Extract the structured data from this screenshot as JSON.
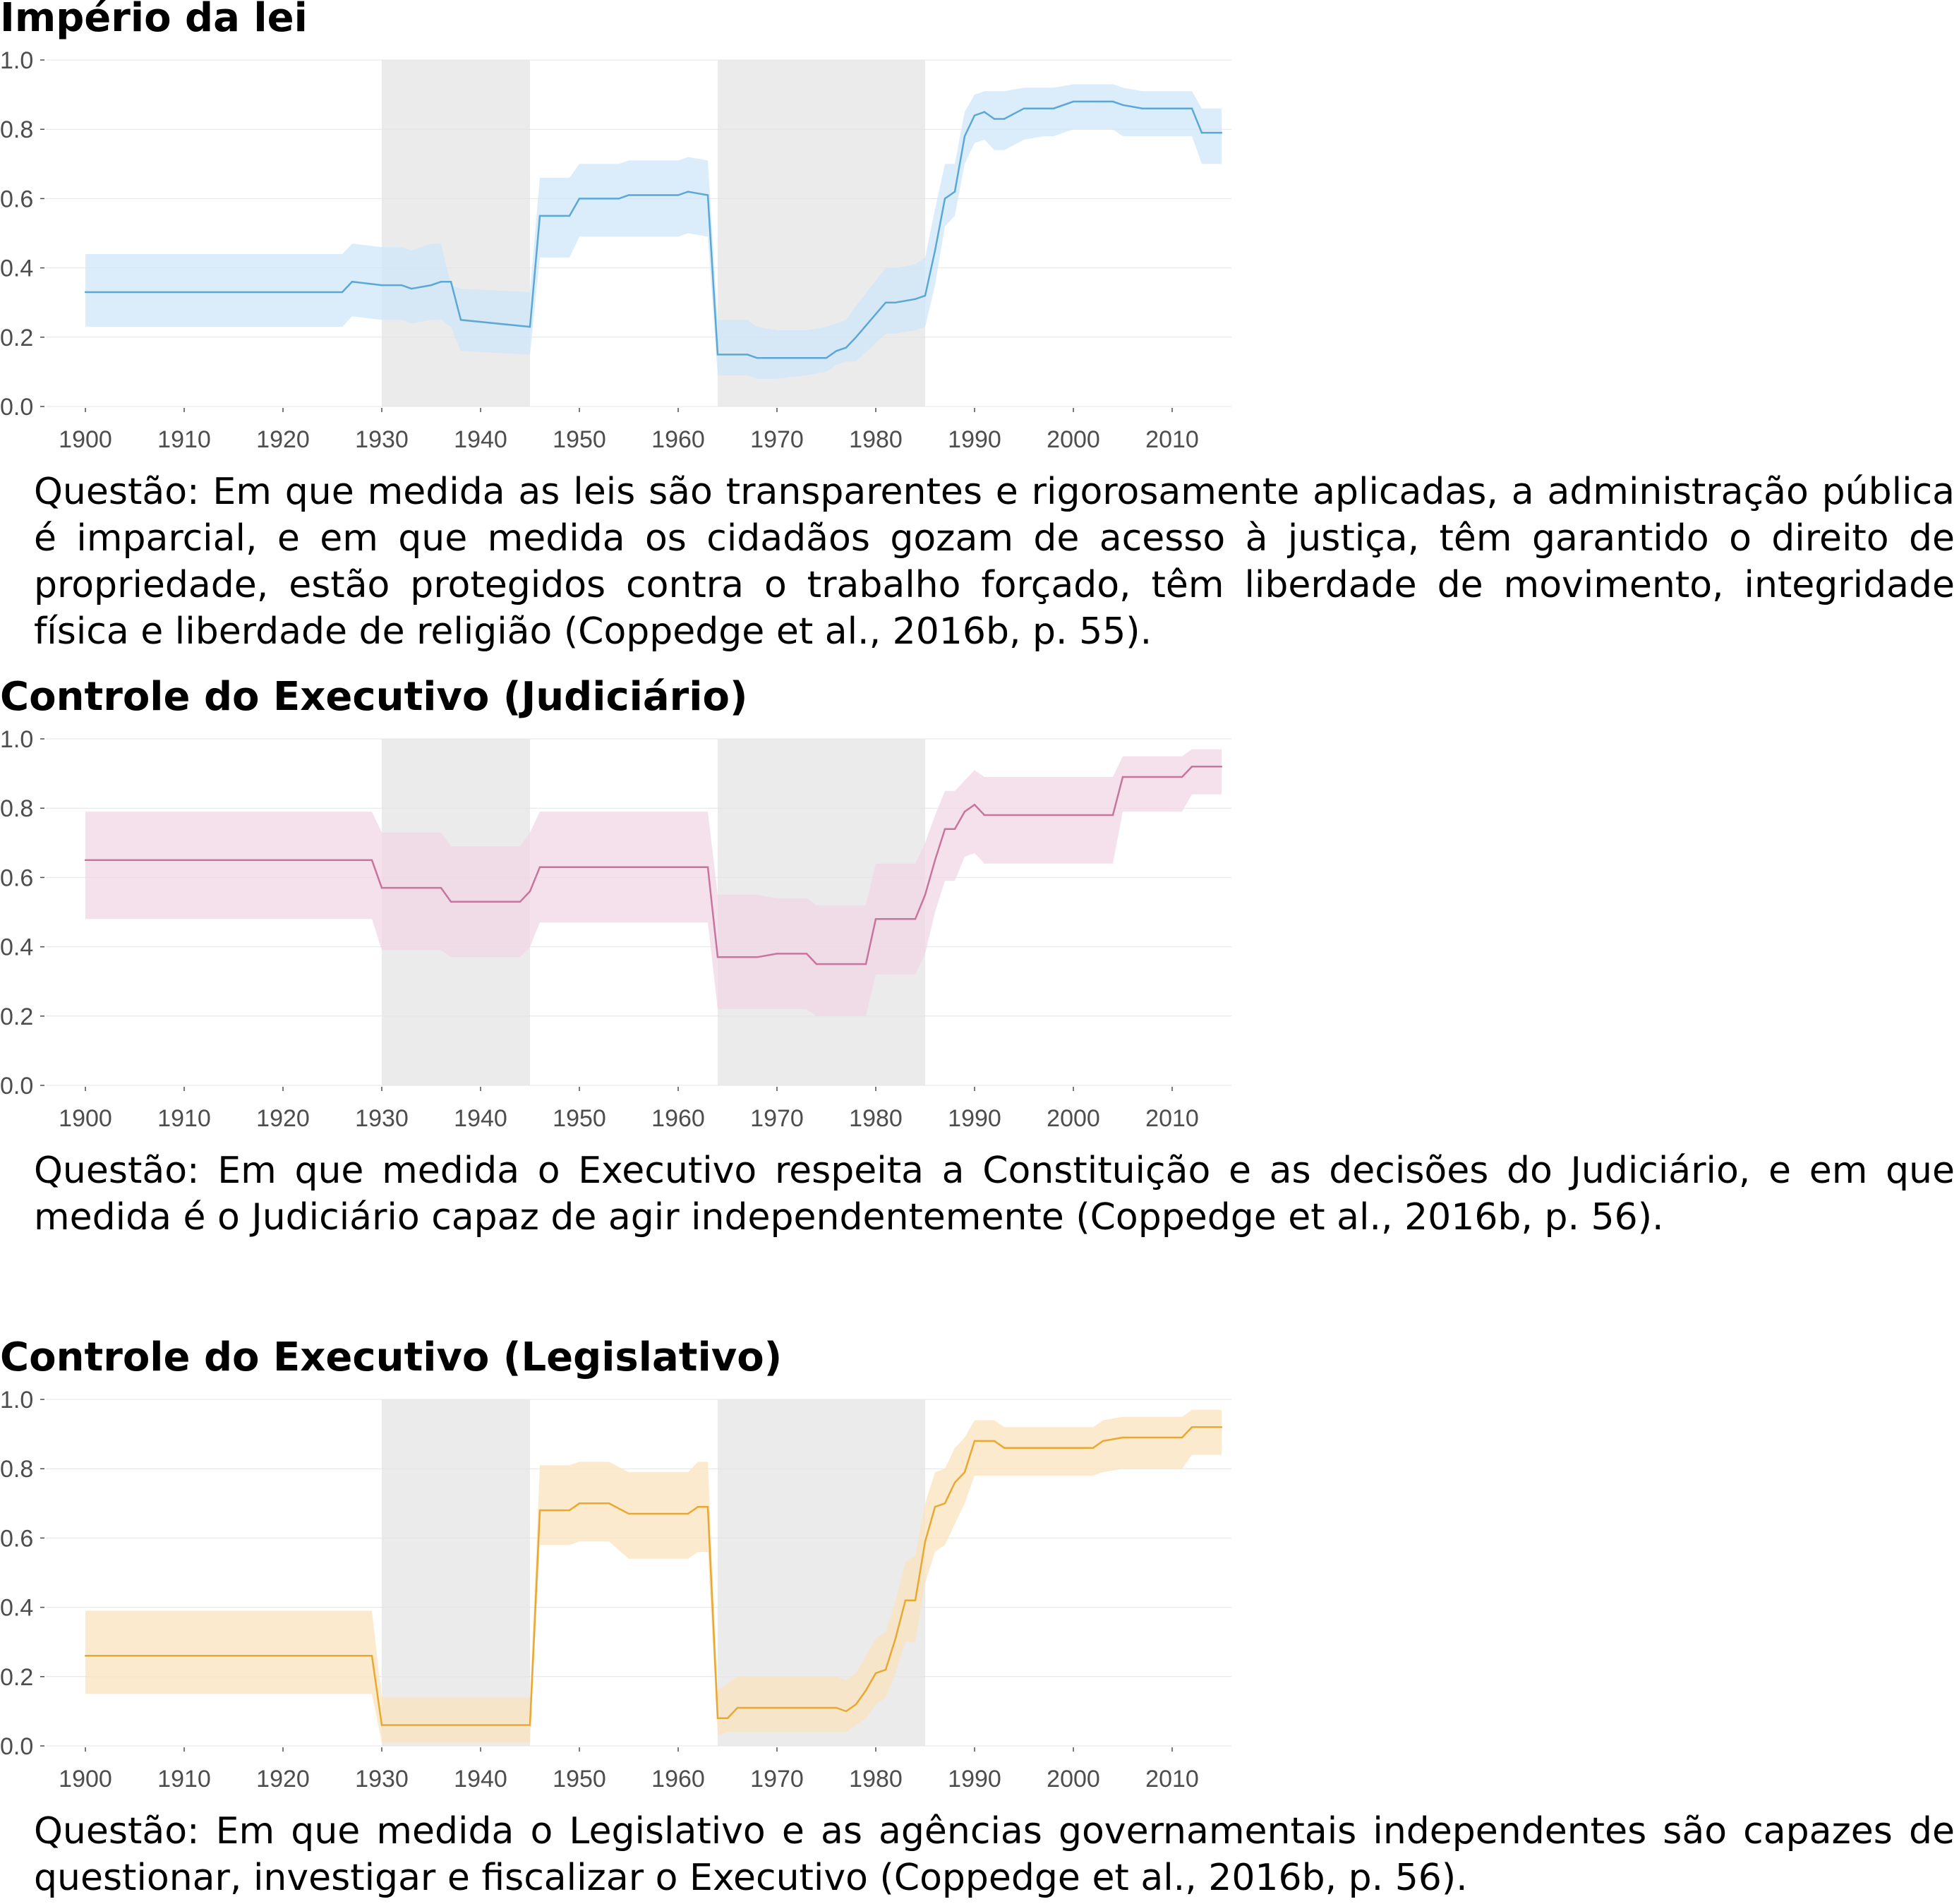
{
  "chart_data": [
    {
      "type": "line",
      "title": "Império da lei",
      "question": "Questão: Em que medida as leis são transparentes e rigorosamente aplicadas, a administração pública é imparcial, e em que medida os cidadãos gozam de acesso à justiça, têm garantido o direito de propriedade, estão protegidos contra o trabalho forçado, têm liberdade de movimento, integridade física e liberdade de religião (Coppedge et al., 2016b, p. 55).",
      "line_color": "#5aa8d6",
      "band_color": "#cfe6f8",
      "xlim": [
        1896,
        2016
      ],
      "ylim": [
        0,
        1
      ],
      "x_ticks": [
        1900,
        1910,
        1920,
        1930,
        1940,
        1950,
        1960,
        1970,
        1980,
        1990,
        2000,
        2010
      ],
      "y_ticks": [
        "0.0",
        "0.2",
        "0.4",
        "0.6",
        "0.8",
        "1.0"
      ],
      "shaded_periods": [
        [
          1930,
          1945
        ],
        [
          1964,
          1985
        ]
      ],
      "grid": true,
      "series": [
        {
          "x": [
            1900,
            1926,
            1927,
            1930,
            1932,
            1933,
            1935,
            1936,
            1937,
            1938,
            1945,
            1946,
            1949,
            1950,
            1954,
            1955,
            1960,
            1961,
            1963,
            1964,
            1967,
            1968,
            1970,
            1973,
            1975,
            1976,
            1977,
            1978,
            1981,
            1982,
            1984,
            1985,
            1986,
            1987,
            1988,
            1989,
            1990,
            1991,
            1992,
            1993,
            1995,
            1997,
            1998,
            2000,
            2002,
            2004,
            2005,
            2007,
            2010,
            2012,
            2013,
            2015
          ],
          "y": [
            0.33,
            0.33,
            0.36,
            0.35,
            0.35,
            0.34,
            0.35,
            0.36,
            0.36,
            0.25,
            0.23,
            0.55,
            0.55,
            0.6,
            0.6,
            0.61,
            0.61,
            0.62,
            0.61,
            0.15,
            0.15,
            0.14,
            0.14,
            0.14,
            0.14,
            0.16,
            0.17,
            0.2,
            0.3,
            0.3,
            0.31,
            0.32,
            0.45,
            0.6,
            0.62,
            0.78,
            0.84,
            0.85,
            0.83,
            0.83,
            0.86,
            0.86,
            0.86,
            0.88,
            0.88,
            0.88,
            0.87,
            0.86,
            0.86,
            0.86,
            0.79,
            0.79
          ],
          "lower": [
            0.23,
            0.23,
            0.26,
            0.25,
            0.25,
            0.24,
            0.25,
            0.25,
            0.23,
            0.16,
            0.15,
            0.43,
            0.43,
            0.49,
            0.49,
            0.49,
            0.49,
            0.5,
            0.49,
            0.09,
            0.09,
            0.08,
            0.08,
            0.09,
            0.1,
            0.12,
            0.13,
            0.13,
            0.21,
            0.21,
            0.22,
            0.23,
            0.35,
            0.52,
            0.55,
            0.7,
            0.76,
            0.77,
            0.74,
            0.74,
            0.77,
            0.78,
            0.78,
            0.8,
            0.8,
            0.8,
            0.78,
            0.78,
            0.78,
            0.78,
            0.7,
            0.7
          ],
          "upper": [
            0.44,
            0.44,
            0.47,
            0.46,
            0.46,
            0.45,
            0.47,
            0.47,
            0.35,
            0.34,
            0.33,
            0.66,
            0.66,
            0.7,
            0.7,
            0.71,
            0.71,
            0.72,
            0.71,
            0.25,
            0.25,
            0.23,
            0.22,
            0.22,
            0.23,
            0.24,
            0.25,
            0.29,
            0.4,
            0.4,
            0.41,
            0.43,
            0.57,
            0.7,
            0.7,
            0.85,
            0.9,
            0.91,
            0.91,
            0.91,
            0.92,
            0.92,
            0.92,
            0.93,
            0.93,
            0.93,
            0.92,
            0.91,
            0.91,
            0.91,
            0.86,
            0.86
          ]
        }
      ]
    },
    {
      "type": "line",
      "title": "Controle do Executivo (Judiciário)",
      "question": "Questão: Em que medida o Executivo respeita a Constituição e as decisões do Judiciário, e em que medida é o Judiciário capaz de agir independentemente (Coppedge et al., 2016b, p. 56).",
      "line_color": "#c8749e",
      "band_color": "#f1d7e6",
      "xlim": [
        1896,
        2016
      ],
      "ylim": [
        0,
        1
      ],
      "x_ticks": [
        1900,
        1910,
        1920,
        1930,
        1940,
        1950,
        1960,
        1970,
        1980,
        1990,
        2000,
        2010
      ],
      "y_ticks": [
        "0.0",
        "0.2",
        "0.4",
        "0.6",
        "0.8",
        "1.0"
      ],
      "shaded_periods": [
        [
          1930,
          1945
        ],
        [
          1964,
          1985
        ]
      ],
      "grid": true,
      "series": [
        {
          "x": [
            1900,
            1929,
            1930,
            1936,
            1937,
            1944,
            1945,
            1946,
            1963,
            1964,
            1967,
            1968,
            1970,
            1973,
            1974,
            1979,
            1980,
            1984,
            1985,
            1986,
            1987,
            1988,
            1989,
            1990,
            1991,
            2004,
            2005,
            2011,
            2012,
            2015
          ],
          "y": [
            0.65,
            0.65,
            0.57,
            0.57,
            0.53,
            0.53,
            0.56,
            0.63,
            0.63,
            0.37,
            0.37,
            0.37,
            0.38,
            0.38,
            0.35,
            0.35,
            0.48,
            0.48,
            0.55,
            0.65,
            0.74,
            0.74,
            0.79,
            0.81,
            0.78,
            0.78,
            0.89,
            0.89,
            0.92,
            0.92
          ],
          "lower": [
            0.48,
            0.48,
            0.39,
            0.39,
            0.37,
            0.37,
            0.4,
            0.47,
            0.47,
            0.22,
            0.22,
            0.22,
            0.22,
            0.22,
            0.2,
            0.2,
            0.32,
            0.32,
            0.38,
            0.5,
            0.59,
            0.59,
            0.66,
            0.67,
            0.64,
            0.64,
            0.79,
            0.79,
            0.84,
            0.84
          ],
          "upper": [
            0.79,
            0.79,
            0.73,
            0.73,
            0.69,
            0.69,
            0.73,
            0.79,
            0.79,
            0.55,
            0.55,
            0.55,
            0.54,
            0.54,
            0.52,
            0.52,
            0.64,
            0.64,
            0.7,
            0.78,
            0.85,
            0.85,
            0.88,
            0.91,
            0.89,
            0.89,
            0.95,
            0.95,
            0.97,
            0.97
          ]
        }
      ]
    },
    {
      "type": "line",
      "title": "Controle do Executivo (Legislativo)",
      "question": "Questão: Em que medida o Legislativo e as agências governamentais independentes são capazes de questionar, investigar e fiscalizar o Executivo (Coppedge et al., 2016b, p. 56).",
      "line_color": "#e9a830",
      "band_color": "#fbe3bd",
      "xlim": [
        1896,
        2016
      ],
      "ylim": [
        0,
        1
      ],
      "x_ticks": [
        1900,
        1910,
        1920,
        1930,
        1940,
        1950,
        1960,
        1970,
        1980,
        1990,
        2000,
        2010
      ],
      "y_ticks": [
        "0.0",
        "0.2",
        "0.4",
        "0.6",
        "0.8",
        "1.0"
      ],
      "shaded_periods": [
        [
          1930,
          1945
        ],
        [
          1964,
          1985
        ]
      ],
      "grid": true,
      "series": [
        {
          "x": [
            1900,
            1929,
            1930,
            1945,
            1946,
            1949,
            1950,
            1953,
            1955,
            1961,
            1962,
            1963,
            1964,
            1965,
            1966,
            1976,
            1977,
            1978,
            1979,
            1980,
            1981,
            1982,
            1983,
            1984,
            1985,
            1986,
            1987,
            1988,
            1989,
            1990,
            1992,
            1993,
            1995,
            2002,
            2003,
            2005,
            2011,
            2012,
            2015
          ],
          "y": [
            0.26,
            0.26,
            0.06,
            0.06,
            0.68,
            0.68,
            0.7,
            0.7,
            0.67,
            0.67,
            0.69,
            0.69,
            0.08,
            0.08,
            0.11,
            0.11,
            0.1,
            0.12,
            0.16,
            0.21,
            0.22,
            0.31,
            0.42,
            0.42,
            0.59,
            0.69,
            0.7,
            0.76,
            0.79,
            0.88,
            0.88,
            0.86,
            0.86,
            0.86,
            0.88,
            0.89,
            0.89,
            0.92,
            0.92
          ],
          "lower": [
            0.15,
            0.15,
            0.01,
            0.01,
            0.58,
            0.58,
            0.59,
            0.59,
            0.54,
            0.54,
            0.56,
            0.56,
            0.03,
            0.04,
            0.04,
            0.04,
            0.04,
            0.06,
            0.08,
            0.12,
            0.14,
            0.21,
            0.3,
            0.3,
            0.47,
            0.56,
            0.58,
            0.64,
            0.7,
            0.78,
            0.78,
            0.78,
            0.78,
            0.78,
            0.79,
            0.8,
            0.8,
            0.84,
            0.84
          ],
          "upper": [
            0.39,
            0.39,
            0.14,
            0.14,
            0.81,
            0.81,
            0.82,
            0.82,
            0.79,
            0.79,
            0.82,
            0.82,
            0.16,
            0.18,
            0.2,
            0.2,
            0.19,
            0.21,
            0.26,
            0.31,
            0.33,
            0.42,
            0.53,
            0.55,
            0.7,
            0.79,
            0.8,
            0.86,
            0.89,
            0.94,
            0.94,
            0.92,
            0.92,
            0.92,
            0.94,
            0.95,
            0.95,
            0.97,
            0.97
          ]
        }
      ]
    }
  ]
}
